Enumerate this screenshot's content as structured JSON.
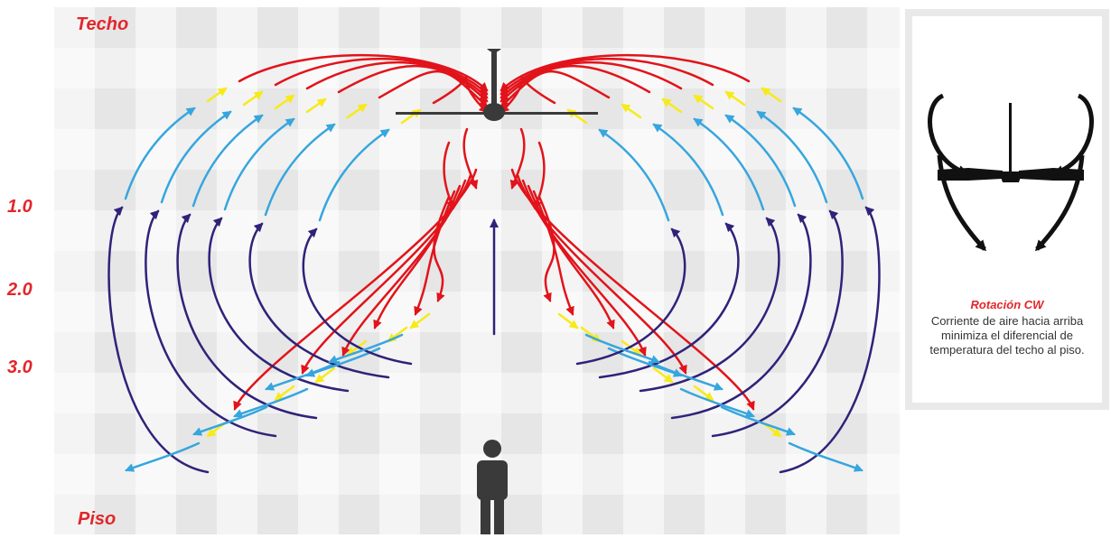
{
  "diagram": {
    "ceiling_label": "Techo",
    "floor_label": "Piso",
    "scale_labels": [
      "1.0",
      "2.0",
      "3.0"
    ]
  },
  "panel": {
    "rotation_title": "Rotación  CW",
    "rotation_desc": "Corriente de aire hacia arriba\nminimiza  el diferencial de\ntemperatura del techo al piso."
  },
  "colors": {
    "hot_air": "#e2131a",
    "warm_air": "#f7ea1a",
    "cool_air": "#36a6de",
    "cold_air": "#2e2379",
    "fan": "#3a3a3a",
    "person": "#3a3a3a",
    "accent_text": "#e2262b"
  },
  "icons": [
    "ceiling-fan-icon",
    "person-icon",
    "rotation-arrows-icon"
  ]
}
